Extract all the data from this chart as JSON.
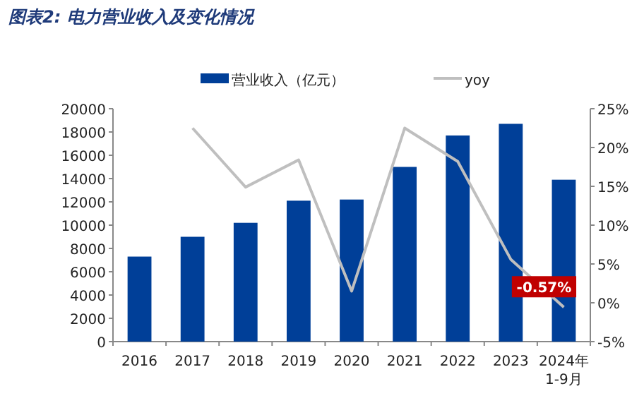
{
  "chart_data": {
    "type": "bar",
    "title": "图表2: 电力营业收入及变化情况",
    "categories": [
      "2016",
      "2017",
      "2018",
      "2019",
      "2020",
      "2021",
      "2022",
      "2023",
      "2024年1-9月"
    ],
    "series": [
      {
        "name": "营业收入（亿元）",
        "color": "#003f98",
        "values": [
          7300,
          9000,
          10200,
          12100,
          12200,
          15000,
          17700,
          18700,
          13900
        ]
      },
      {
        "name": "yoy",
        "type": "line",
        "axis": "y2",
        "color": "#bfbfbf",
        "values": [
          null,
          22.5,
          14.9,
          18.4,
          1.5,
          22.5,
          18.2,
          5.6,
          -0.57
        ],
        "value_labels": [
          null,
          null,
          null,
          null,
          null,
          null,
          null,
          null,
          "-0.57%"
        ]
      }
    ],
    "ylim": [
      0,
      20000
    ],
    "yticks": [
      0,
      2000,
      4000,
      6000,
      8000,
      10000,
      12000,
      14000,
      16000,
      18000,
      20000
    ],
    "y2lim": [
      -5,
      25
    ],
    "y2ticks": [
      {
        "value": -5,
        "label": "-5%"
      },
      {
        "value": 0,
        "label": "0%"
      },
      {
        "value": 5,
        "label": "5%"
      },
      {
        "value": 10,
        "label": "10%"
      },
      {
        "value": 15,
        "label": "15%"
      },
      {
        "value": 20,
        "label": "20%"
      },
      {
        "value": 25,
        "label": "25%"
      }
    ],
    "legend": "top",
    "grid": false,
    "marker": "none"
  }
}
